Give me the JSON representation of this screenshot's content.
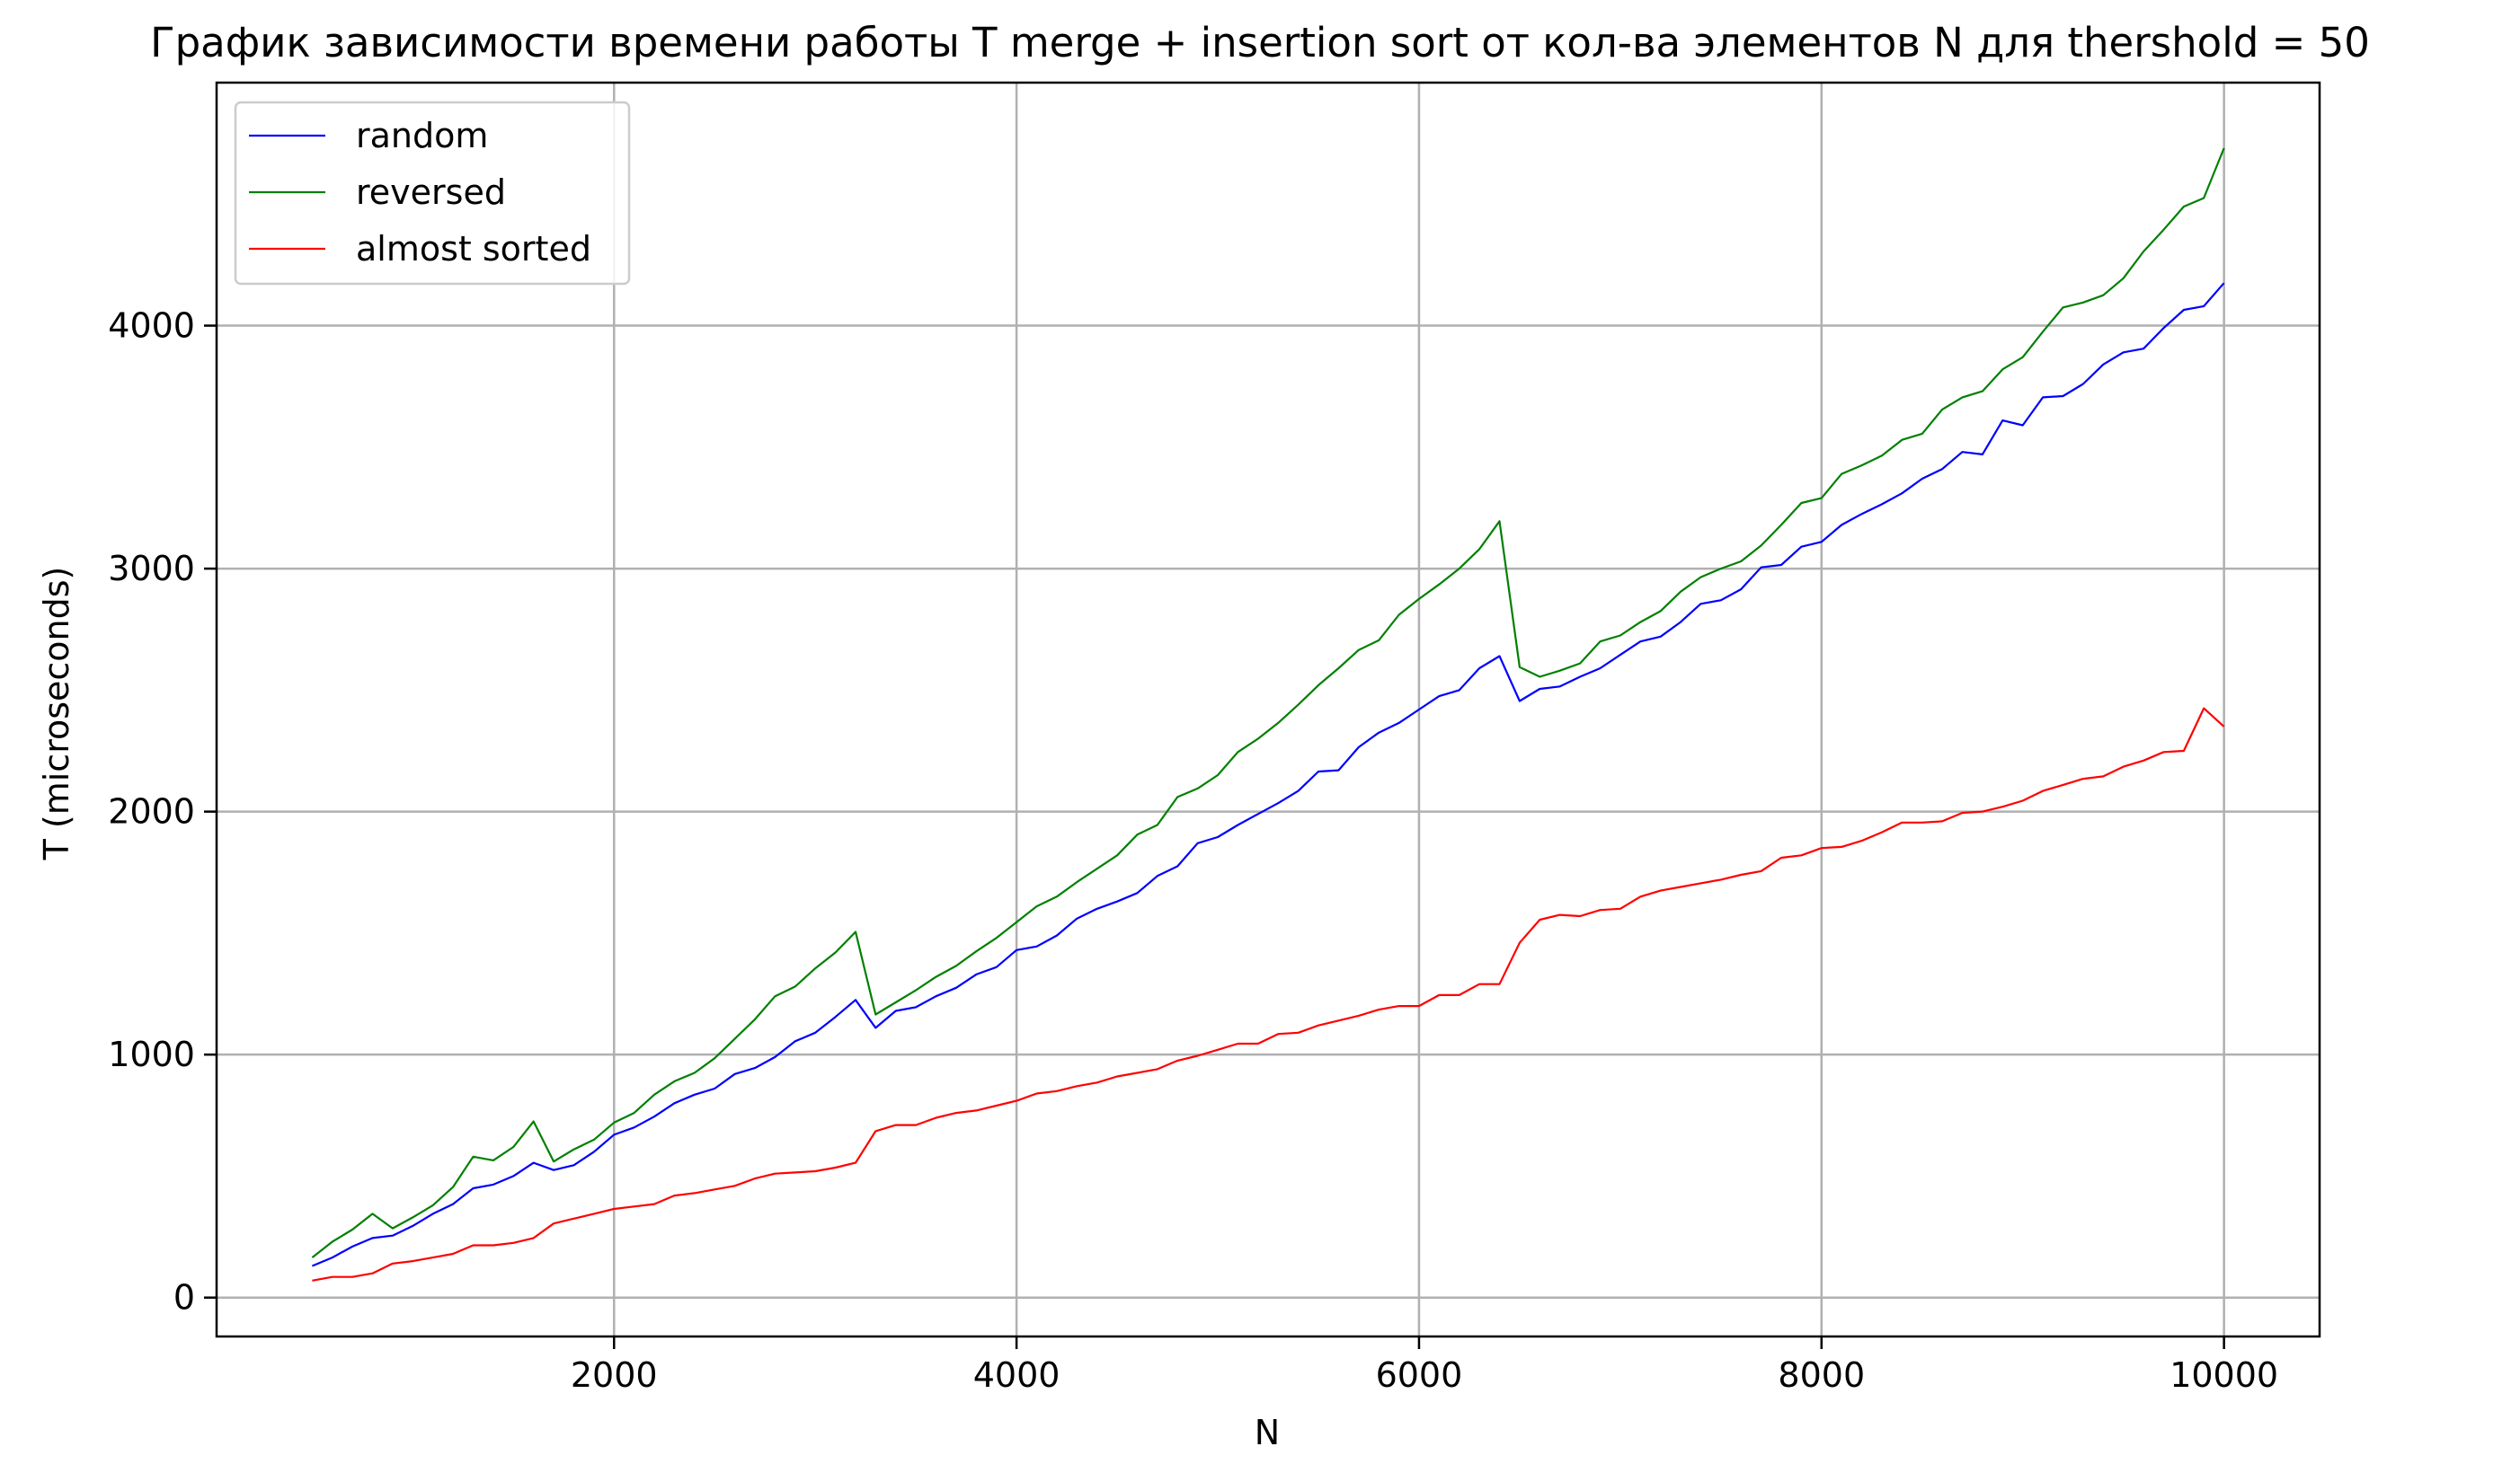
{
  "chart_data": {
    "type": "line",
    "title": "График зависимости времени работы T merge + insertion sort от кол-ва элементов N для thershold = 50",
    "xlabel": "N",
    "ylabel": "T (microseconds)",
    "xlim": [
      25,
      10475
    ],
    "ylim": [
      -160,
      5000
    ],
    "xticks": [
      2000,
      4000,
      6000,
      8000,
      10000
    ],
    "yticks": [
      0,
      1000,
      2000,
      3000,
      4000
    ],
    "grid": true,
    "legend_position": "top-left",
    "x": [
      500,
      600,
      700,
      800,
      900,
      1000,
      1100,
      1200,
      1300,
      1400,
      1500,
      1600,
      1700,
      1800,
      1900,
      2000,
      2100,
      2200,
      2300,
      2400,
      2500,
      2600,
      2700,
      2800,
      2900,
      3000,
      3100,
      3200,
      3300,
      3400,
      3500,
      3600,
      3700,
      3800,
      3900,
      4000,
      4100,
      4200,
      4300,
      4400,
      4500,
      4600,
      4700,
      4800,
      4900,
      5000,
      5100,
      5200,
      5300,
      5400,
      5500,
      5600,
      5700,
      5800,
      5900,
      6000,
      6100,
      6200,
      6300,
      6400,
      6500,
      6600,
      6700,
      6800,
      6900,
      7000,
      7100,
      7200,
      7300,
      7400,
      7500,
      7600,
      7700,
      7800,
      7900,
      8000,
      8100,
      8200,
      8300,
      8400,
      8500,
      8600,
      8700,
      8800,
      8900,
      9000,
      9100,
      9200,
      9300,
      9400,
      9500,
      9600,
      9700,
      9800,
      9900,
      10000
    ],
    "series": [
      {
        "name": "random",
        "color": "#0000ff",
        "values": [
          130,
          165,
          210,
          245,
          255,
          295,
          345,
          385,
          450,
          465,
          500,
          555,
          525,
          545,
          600,
          670,
          700,
          745,
          800,
          835,
          860,
          920,
          945,
          990,
          1055,
          1090,
          1155,
          1225,
          1110,
          1180,
          1195,
          1240,
          1275,
          1330,
          1360,
          1430,
          1445,
          1490,
          1560,
          1600,
          1630,
          1665,
          1735,
          1775,
          1870,
          1895,
          1945,
          1990,
          2035,
          2085,
          2165,
          2170,
          2265,
          2325,
          2365,
          2420,
          2475,
          2500,
          2590,
          2640,
          2455,
          2505,
          2515,
          2555,
          2590,
          2645,
          2700,
          2720,
          2780,
          2855,
          2870,
          2915,
          3005,
          3015,
          3090,
          3110,
          3180,
          3225,
          3265,
          3310,
          3370,
          3410,
          3480,
          3470,
          3610,
          3590,
          3705,
          3710,
          3760,
          3840,
          3890,
          3905,
          3990,
          4065,
          4080,
          4175
        ]
      },
      {
        "name": "reversed",
        "color": "#008000",
        "values": [
          165,
          230,
          280,
          345,
          285,
          330,
          380,
          455,
          580,
          565,
          620,
          725,
          560,
          610,
          650,
          720,
          760,
          835,
          890,
          925,
          985,
          1065,
          1145,
          1240,
          1280,
          1355,
          1420,
          1505,
          1165,
          1215,
          1265,
          1320,
          1365,
          1425,
          1480,
          1545,
          1610,
          1650,
          1710,
          1765,
          1820,
          1905,
          1945,
          2060,
          2095,
          2150,
          2245,
          2300,
          2365,
          2440,
          2520,
          2590,
          2665,
          2705,
          2810,
          2875,
          2935,
          3000,
          3080,
          3195,
          2595,
          2555,
          2580,
          2610,
          2700,
          2725,
          2780,
          2825,
          2905,
          2965,
          3000,
          3030,
          3095,
          3180,
          3270,
          3290,
          3390,
          3425,
          3465,
          3530,
          3555,
          3655,
          3705,
          3730,
          3820,
          3870,
          3975,
          4075,
          4095,
          4125,
          4195,
          4305,
          4395,
          4490,
          4525,
          4730
        ]
      },
      {
        "name": "almost sorted",
        "color": "#ff0000",
        "values": [
          70,
          85,
          85,
          100,
          140,
          150,
          165,
          180,
          215,
          215,
          225,
          245,
          305,
          325,
          345,
          365,
          375,
          385,
          420,
          430,
          445,
          460,
          490,
          510,
          515,
          520,
          535,
          555,
          685,
          710,
          710,
          740,
          760,
          770,
          790,
          810,
          840,
          850,
          870,
          885,
          910,
          925,
          940,
          975,
          995,
          1020,
          1045,
          1045,
          1085,
          1090,
          1120,
          1140,
          1160,
          1185,
          1200,
          1200,
          1245,
          1245,
          1290,
          1290,
          1460,
          1555,
          1575,
          1570,
          1595,
          1600,
          1650,
          1675,
          1690,
          1705,
          1720,
          1740,
          1755,
          1810,
          1820,
          1850,
          1855,
          1880,
          1915,
          1955,
          1955,
          1960,
          1995,
          2000,
          2020,
          2045,
          2085,
          2110,
          2135,
          2145,
          2185,
          2210,
          2245,
          2250,
          2425,
          2350
        ]
      }
    ]
  }
}
